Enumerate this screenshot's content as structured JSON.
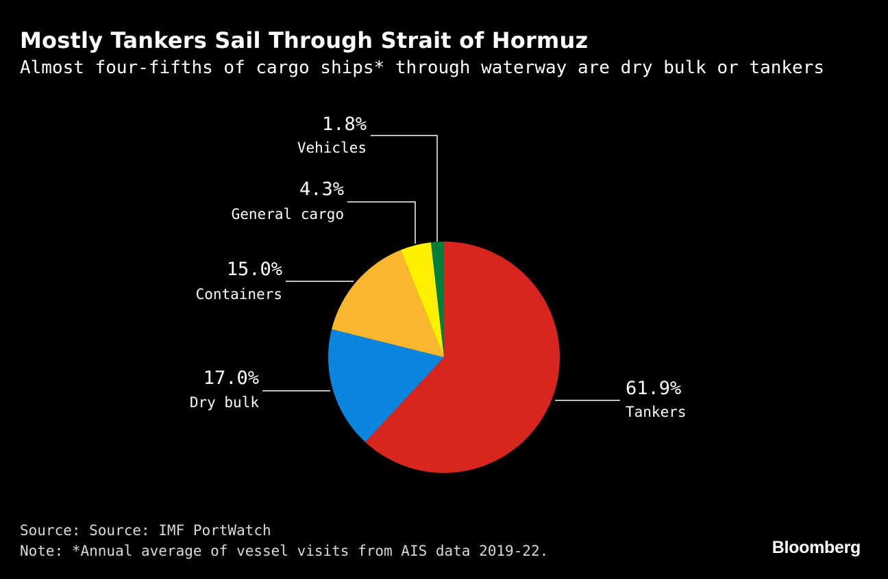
{
  "header": {
    "title": "Mostly Tankers Sail Through Strait of Hormuz",
    "subtitle": "Almost four-fifths of cargo ships* through waterway are dry bulk or tankers"
  },
  "chart_data": {
    "type": "pie",
    "title": "Mostly Tankers Sail Through Strait of Hormuz",
    "subtitle": "Almost four-fifths of cargo ships* through waterway are dry bulk or tankers",
    "slices": [
      {
        "label": "Tankers",
        "value": 61.9,
        "value_label": "61.9%",
        "color": "#d8261f"
      },
      {
        "label": "Dry bulk",
        "value": 17.0,
        "value_label": "17.0%",
        "color": "#0a86de"
      },
      {
        "label": "Containers",
        "value": 15.0,
        "value_label": "15.0%",
        "color": "#fbb62f"
      },
      {
        "label": "General cargo",
        "value": 4.3,
        "value_label": "4.3%",
        "color": "#fff000"
      },
      {
        "label": "Vehicles",
        "value": 1.8,
        "value_label": "1.8%",
        "color": "#007f3b"
      }
    ],
    "start": "12 o'clock",
    "direction": "clockwise"
  },
  "footer": {
    "source": "Source: Source: IMF PortWatch",
    "note": "Note: *Annual average of vessel visits from AIS data 2019-22.",
    "brand": "Bloomberg"
  }
}
